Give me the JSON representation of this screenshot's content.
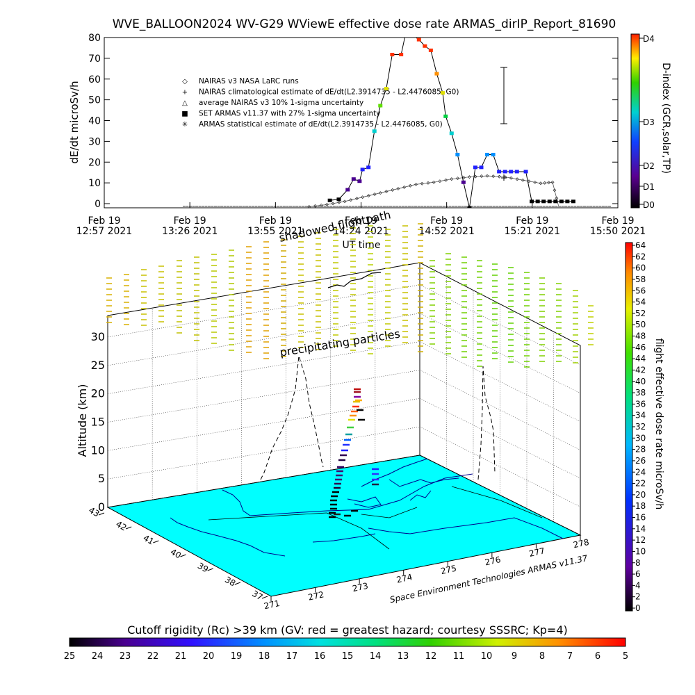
{
  "title": "WVE_BALLOON2024 WV-G29 WViewE effective dose rate ARMAS_dirIP_Report_81690",
  "chart_data": [
    {
      "type": "line",
      "xlabel": "UT time",
      "ylabel": "dE/dt microSv/h",
      "ylim": [
        0,
        80
      ],
      "yticks": [
        "0",
        "10",
        "20",
        "30",
        "40",
        "50",
        "60",
        "70",
        "80"
      ],
      "xticks": [
        {
          "t": "12:57",
          "l1": "Feb 19",
          "l2": "12:57 2021"
        },
        {
          "t": "13:26",
          "l1": "Feb 19",
          "l2": "13:26 2021"
        },
        {
          "t": "13:55",
          "l1": "Feb 19",
          "l2": "13:55 2021"
        },
        {
          "t": "14:24",
          "l1": "Feb 19",
          "l2": "14:24 2021"
        },
        {
          "t": "14:52",
          "l1": "Feb 19",
          "l2": "14:52 2021"
        },
        {
          "t": "15:21",
          "l1": "Feb 19",
          "l2": "15:21 2021"
        },
        {
          "t": "15:50",
          "l1": "Feb 19",
          "l2": "15:50 2021"
        }
      ],
      "legend": [
        {
          "symbol": "◇",
          "label": "NAIRAS v3 NASA LaRC runs"
        },
        {
          "symbol": "+",
          "label": "NAIRAS climatological estimate of dE/dt(L2.3914735 - L2.4476085, G0)"
        },
        {
          "symbol": "△",
          "label": "average NAIRAS v3 10% 1-sigma uncertainty"
        },
        {
          "symbol": "■",
          "label": "SET ARMAS v11.37 with 27% 1-sigma uncertainty"
        },
        {
          "symbol": "✳",
          "label": "ARMAS statistical estimate of dE/dt(L2.3914735 - L2.4476085, G0)"
        }
      ],
      "right_axis": {
        "label": "D-index (GCR,solar,TP)",
        "ticks": [
          "D0",
          "D1",
          "D2",
          "D3",
          "D4"
        ]
      },
      "series": [
        {
          "name": "SET ARMAS v11.37 with 27% 1-sigma uncertainty",
          "x": [
            "14:13",
            "14:16",
            "14:19",
            "14:21",
            "14:23",
            "14:24",
            "14:26",
            "14:28",
            "14:30",
            "14:32",
            "14:34",
            "14:37",
            "14:39",
            "14:41",
            "14:43",
            "14:45",
            "14:47",
            "14:49",
            "14:51",
            "14:52",
            "14:54",
            "14:56",
            "14:58",
            "15:00",
            "15:02",
            "15:04",
            "15:06",
            "15:08",
            "15:10",
            "15:12",
            "15:14",
            "15:16",
            "15:19",
            "15:21",
            "15:23",
            "15:25",
            "15:27",
            "15:29",
            "15:31",
            "15:33",
            "15:35"
          ],
          "values": [
            3.5,
            4,
            8.5,
            13.5,
            12.5,
            18,
            19,
            36,
            48,
            56,
            72,
            72,
            85,
            81,
            79,
            76,
            74,
            63,
            54,
            43,
            35,
            25,
            12,
            0,
            19,
            19,
            25,
            25,
            17,
            17,
            17,
            17,
            17,
            3,
            3,
            3,
            3,
            3,
            3,
            3,
            3
          ]
        },
        {
          "name": "NAIRAS v3 NASA LaRC runs",
          "x": [
            "14:06",
            "14:12",
            "14:18",
            "14:24",
            "14:30",
            "14:36",
            "14:42",
            "14:48",
            "14:54",
            "15:00",
            "15:06",
            "15:12",
            "15:18",
            "15:24",
            "15:28",
            "15:30"
          ],
          "values": [
            0.5,
            1.5,
            3,
            5,
            7,
            9,
            11,
            12,
            13.5,
            14.5,
            15,
            14.5,
            13,
            11.5,
            12,
            1
          ]
        }
      ]
    },
    {
      "type": "scatter",
      "zlabel": "Altitude (km)",
      "zticks": [
        "0",
        "5",
        "10",
        "15",
        "20",
        "25",
        "30"
      ],
      "lat_ticks": [
        "37",
        "38",
        "39",
        "40",
        "41",
        "42",
        "43"
      ],
      "lon_ticks": [
        "271",
        "272",
        "273",
        "274",
        "275",
        "276",
        "277",
        "278"
      ],
      "annotations": [
        "shadowed flightpath",
        "precipitating particles"
      ],
      "credit": "Space Environment Technologies ARMAS v11.37",
      "colorbar": {
        "label": "flight effective dose rate microSv/h",
        "ticks": [
          "0",
          "2",
          "4",
          "6",
          "8",
          "10",
          "12",
          "14",
          "16",
          "18",
          "20",
          "22",
          "24",
          "26",
          "28",
          "30",
          "32",
          "34",
          "36",
          "38",
          "40",
          "42",
          "44",
          "46",
          "48",
          "50",
          "52",
          "54",
          "56",
          "58",
          "60",
          "62",
          "64"
        ]
      }
    }
  ],
  "bottom_colorbar": {
    "title": "Cutoff rigidity (Rc) >39 km (GV: red = greatest hazard; courtesy SSSRC; Kp=4)",
    "ticks": [
      "25",
      "24",
      "23",
      "22",
      "21",
      "20",
      "19",
      "18",
      "17",
      "16",
      "15",
      "14",
      "13",
      "12",
      "11",
      "10",
      "9",
      "8",
      "7",
      "6",
      "5"
    ]
  },
  "colors": {
    "surface": "#00ffff",
    "outline": "#00008b",
    "background": "#ffffff"
  }
}
